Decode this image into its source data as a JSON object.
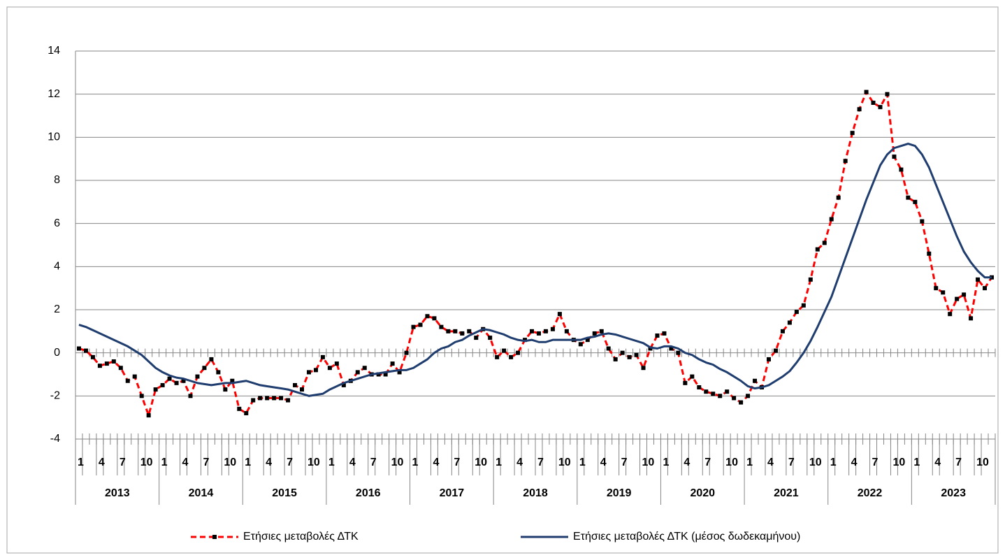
{
  "chart_data": {
    "type": "line",
    "categories": [
      "1",
      null,
      null,
      "4",
      null,
      null,
      "7",
      null,
      null,
      "10",
      null,
      null,
      "1",
      null,
      null,
      "4",
      null,
      null,
      "7",
      null,
      null,
      "10",
      null,
      null,
      "1",
      null,
      null,
      "4",
      null,
      null,
      "7",
      null,
      null,
      "10",
      null,
      null,
      "1",
      null,
      null,
      "4",
      null,
      null,
      "7",
      null,
      null,
      "10",
      null,
      null,
      "1",
      null,
      null,
      "4",
      null,
      null,
      "7",
      null,
      null,
      "10",
      null,
      null,
      "1",
      null,
      null,
      "4",
      null,
      null,
      "7",
      null,
      null,
      "10",
      null,
      null,
      "1",
      null,
      null,
      "4",
      null,
      null,
      "7",
      null,
      null,
      "10",
      null,
      null,
      "1",
      null,
      null,
      "4",
      null,
      null,
      "7",
      null,
      null,
      "10",
      null,
      null,
      "1",
      null,
      null,
      "4",
      null,
      null,
      "7",
      null,
      null,
      "10",
      null,
      null,
      "1",
      null,
      null,
      "4",
      null,
      null,
      "7",
      null,
      null,
      "10",
      null,
      null,
      "1",
      null,
      null,
      "4",
      null,
      null,
      "7",
      null,
      null,
      "10",
      null,
      null
    ],
    "years": [
      "2013",
      "2014",
      "2015",
      "2016",
      "2017",
      "2018",
      "2019",
      "2020",
      "2021",
      "2022",
      "2023"
    ],
    "series": [
      {
        "name": "Ετήσιες μεταβολές ΔΤΚ",
        "color": "#ff0000",
        "marker_color": "#000000",
        "dashed": true,
        "values": [
          0.2,
          0.1,
          -0.2,
          -0.6,
          -0.5,
          -0.4,
          -0.7,
          -1.3,
          -1.1,
          -2.0,
          -2.9,
          -1.7,
          -1.5,
          -1.2,
          -1.4,
          -1.3,
          -2.0,
          -1.1,
          -0.7,
          -0.3,
          -0.9,
          -1.7,
          -1.3,
          -2.6,
          -2.8,
          -2.2,
          -2.1,
          -2.1,
          -2.1,
          -2.1,
          -2.2,
          -1.5,
          -1.7,
          -0.9,
          -0.8,
          -0.2,
          -0.7,
          -0.5,
          -1.5,
          -1.3,
          -0.9,
          -0.7,
          -1.0,
          -1.0,
          -1.0,
          -0.5,
          -0.9,
          0.0,
          1.2,
          1.3,
          1.7,
          1.6,
          1.2,
          1.0,
          1.0,
          0.9,
          1.0,
          0.7,
          1.1,
          0.7,
          -0.2,
          0.1,
          -0.2,
          0.0,
          0.6,
          1.0,
          0.9,
          1.0,
          1.1,
          1.8,
          1.0,
          0.6,
          0.4,
          0.6,
          0.9,
          1.0,
          0.2,
          -0.3,
          0.0,
          -0.2,
          -0.1,
          -0.7,
          0.2,
          0.8,
          0.9,
          0.2,
          0.0,
          -1.4,
          -1.1,
          -1.6,
          -1.8,
          -1.9,
          -2.0,
          -1.8,
          -2.1,
          -2.3,
          -2.0,
          -1.3,
          -1.6,
          -0.3,
          0.1,
          1.0,
          1.4,
          1.9,
          2.2,
          3.4,
          4.8,
          5.1,
          6.2,
          7.2,
          8.9,
          10.2,
          11.3,
          12.1,
          11.6,
          11.4,
          12.0,
          9.1,
          8.5,
          7.2,
          7.0,
          6.1,
          4.6,
          3.0,
          2.8,
          1.8,
          2.5,
          2.7,
          1.6,
          3.4,
          3.0,
          3.5
        ]
      },
      {
        "name": "Ετήσιες μεταβολές ΔΤΚ (μέσος δωδεκαμήνου)",
        "color": "#1f3d6e",
        "dashed": false,
        "values": [
          1.3,
          1.2,
          1.05,
          0.9,
          0.75,
          0.6,
          0.45,
          0.3,
          0.1,
          -0.1,
          -0.4,
          -0.7,
          -0.9,
          -1.05,
          -1.15,
          -1.2,
          -1.3,
          -1.4,
          -1.45,
          -1.5,
          -1.45,
          -1.4,
          -1.4,
          -1.35,
          -1.3,
          -1.4,
          -1.5,
          -1.55,
          -1.6,
          -1.65,
          -1.7,
          -1.8,
          -1.9,
          -2.0,
          -1.95,
          -1.9,
          -1.7,
          -1.55,
          -1.4,
          -1.3,
          -1.2,
          -1.1,
          -1.0,
          -0.95,
          -0.9,
          -0.85,
          -0.8,
          -0.8,
          -0.7,
          -0.5,
          -0.3,
          0.0,
          0.2,
          0.3,
          0.5,
          0.6,
          0.8,
          0.95,
          1.1,
          1.05,
          0.95,
          0.85,
          0.7,
          0.6,
          0.55,
          0.6,
          0.5,
          0.5,
          0.6,
          0.6,
          0.6,
          0.6,
          0.6,
          0.7,
          0.75,
          0.85,
          0.9,
          0.85,
          0.75,
          0.65,
          0.55,
          0.45,
          0.25,
          0.2,
          0.3,
          0.3,
          0.2,
          0.0,
          -0.1,
          -0.3,
          -0.45,
          -0.55,
          -0.75,
          -0.9,
          -1.1,
          -1.3,
          -1.55,
          -1.65,
          -1.6,
          -1.5,
          -1.3,
          -1.1,
          -0.85,
          -0.45,
          0.0,
          0.55,
          1.2,
          1.9,
          2.6,
          3.5,
          4.4,
          5.3,
          6.2,
          7.1,
          7.9,
          8.7,
          9.2,
          9.5,
          9.6,
          9.7,
          9.6,
          9.2,
          8.6,
          7.8,
          7.0,
          6.2,
          5.4,
          4.7,
          4.2,
          3.8,
          3.5,
          3.5
        ]
      }
    ],
    "ylim": [
      -4,
      14
    ],
    "yticks": [
      -4,
      -2,
      0,
      2,
      4,
      6,
      8,
      10,
      12,
      14
    ],
    "grid": true
  }
}
